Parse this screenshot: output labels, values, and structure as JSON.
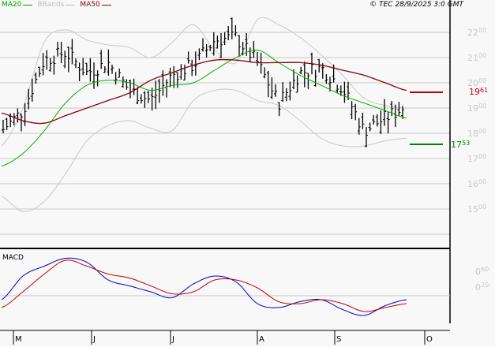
{
  "header": {
    "copyright": "© TEC 28/9/2025 3:0 GMT",
    "legend": [
      {
        "label": "MA20",
        "color": "#00a000"
      },
      {
        "label": "BBands",
        "color": "#c0c0c0"
      },
      {
        "label": "MA50",
        "color": "#900000"
      }
    ]
  },
  "colors": {
    "background": "#f8f8f8",
    "grid": "#c8c8c8",
    "price_bars": "#000000",
    "ma20": "#00b000",
    "ma50": "#8b0000",
    "bbands": "#c0c0c0",
    "macd": "#0000c0",
    "signal": "#c00000",
    "resistance": "#c00000",
    "support": "#008000"
  },
  "chart_data": [
    {
      "type": "line",
      "title": "Price (OHLC bars) with MA20, MA50, Bollinger Bands",
      "xlabel": "",
      "ylabel": "",
      "ylim": [
        14.0,
        22.6
      ],
      "y_ticks": [
        {
          "int": "22",
          "dec": "00",
          "value": 22.0
        },
        {
          "int": "21",
          "dec": "00",
          "value": 21.0
        },
        {
          "int": "20",
          "dec": "00",
          "value": 20.0
        },
        {
          "int": "19",
          "dec": "00",
          "value": 19.0
        },
        {
          "int": "18",
          "dec": "00",
          "value": 18.0
        },
        {
          "int": "17",
          "dec": "00",
          "value": 17.0
        },
        {
          "int": "16",
          "dec": "00",
          "value": 16.0
        },
        {
          "int": "15",
          "dec": "00",
          "value": 15.0
        }
      ],
      "x_ticks": [
        "M",
        "J",
        "J",
        "A",
        "S",
        "O"
      ],
      "grid": true,
      "annotations": [
        {
          "label_int": "19",
          "label_dec": "61",
          "value": 19.61,
          "kind": "resistance"
        },
        {
          "label_int": "17",
          "label_dec": "53",
          "value": 17.53,
          "kind": "support"
        }
      ],
      "series": [
        {
          "name": "MA20",
          "values": [
            16.7,
            17.2,
            18.1,
            19.2,
            19.9,
            20.1,
            20.0,
            19.7,
            19.9,
            20.0,
            20.5,
            21.0,
            21.3,
            20.8,
            20.3,
            19.9,
            19.5,
            19.2,
            18.9,
            18.6
          ]
        },
        {
          "name": "MA50",
          "values": [
            18.8,
            18.5,
            18.4,
            18.7,
            19.0,
            19.3,
            19.6,
            20.1,
            20.4,
            20.7,
            20.9,
            20.9,
            20.8,
            20.8,
            20.8,
            20.7,
            20.5,
            20.3,
            20.0,
            19.7
          ]
        },
        {
          "name": "BB Upper",
          "values": [
            17.5,
            19.0,
            21.6,
            22.1,
            21.7,
            21.5,
            21.4,
            21.0,
            21.6,
            22.3,
            21.3,
            20.8,
            22.5,
            22.3,
            21.8,
            21.1,
            20.3,
            19.4,
            19.1,
            19.0
          ]
        },
        {
          "name": "BB Lower",
          "values": [
            15.5,
            14.9,
            15.3,
            16.4,
            17.7,
            18.3,
            18.5,
            18.2,
            18.1,
            19.3,
            19.7,
            19.7,
            19.3,
            19.1,
            18.5,
            17.8,
            17.5,
            17.5,
            17.7,
            17.8
          ]
        },
        {
          "name": "Close",
          "values": [
            18.1,
            18.9,
            20.9,
            21.2,
            20.4,
            20.8,
            19.7,
            19.3,
            20.3,
            20.7,
            21.7,
            21.8,
            20.8,
            19.2,
            20.4,
            20.6,
            19.8,
            18.1,
            18.6,
            19.1
          ]
        }
      ]
    },
    {
      "type": "line",
      "title": "MACD",
      "y_ticks": [
        {
          "int": "0",
          "dec": "60",
          "value": 0.6
        },
        {
          "int": "0",
          "dec": "20",
          "value": 0.2
        }
      ],
      "series": [
        {
          "name": "MACD",
          "values": [
            -0.1,
            0.5,
            0.75,
            0.95,
            0.85,
            0.4,
            0.25,
            0.1,
            -0.05,
            0.3,
            0.5,
            0.35,
            -0.2,
            -0.3,
            -0.15,
            -0.1,
            -0.35,
            -0.5,
            -0.25,
            -0.1
          ]
        },
        {
          "name": "Signal",
          "values": [
            -0.3,
            0.1,
            0.55,
            0.9,
            0.75,
            0.55,
            0.45,
            0.25,
            0.05,
            0.1,
            0.4,
            0.4,
            0.2,
            -0.15,
            -0.2,
            -0.1,
            -0.2,
            -0.4,
            -0.3,
            -0.2
          ]
        }
      ]
    }
  ],
  "labels": {
    "macd_panel": "MACD",
    "x_axis": [
      "M",
      "J",
      "J",
      "A",
      "S",
      "O"
    ]
  }
}
